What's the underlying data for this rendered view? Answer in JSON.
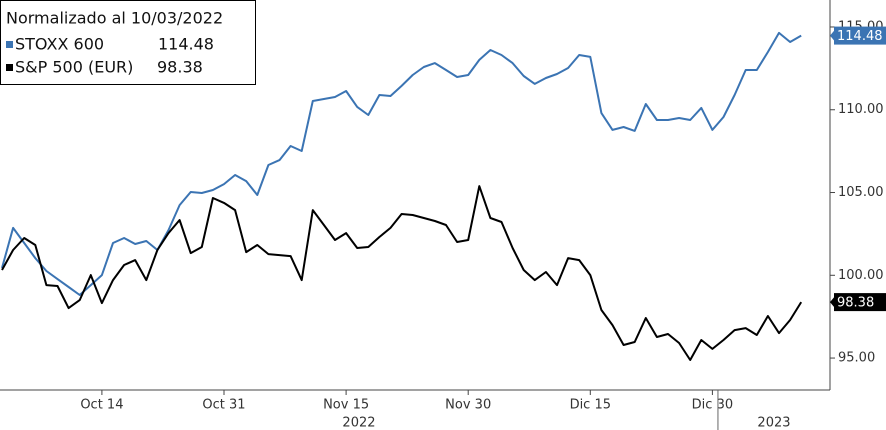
{
  "chart_data": {
    "type": "line",
    "legend_title": "Normalizado al 10/03/2022",
    "categories": [
      null,
      null,
      null,
      null,
      null,
      null,
      null,
      null,
      null,
      "Oct 14",
      null,
      null,
      null,
      null,
      null,
      null,
      null,
      null,
      null,
      null,
      "Oct 31",
      null,
      null,
      null,
      null,
      null,
      null,
      null,
      null,
      null,
      null,
      "Nov 15",
      null,
      null,
      null,
      null,
      null,
      null,
      null,
      null,
      null,
      null,
      "Nov 30",
      null,
      null,
      null,
      null,
      null,
      null,
      null,
      null,
      null,
      null,
      "Dic 15",
      null,
      null,
      null,
      null,
      null,
      null,
      null,
      null,
      null,
      null,
      "Dic 30",
      null,
      null,
      null,
      null,
      null,
      null,
      null,
      null
    ],
    "year_groups": [
      {
        "label": "2022",
        "first": 0,
        "last": 64
      },
      {
        "label": "2023",
        "first": 65,
        "last": 72
      }
    ],
    "series": [
      {
        "name": "STOXX 600",
        "color": "#3b74b3",
        "values": [
          100.44,
          102.86,
          101.95,
          101.04,
          100.26,
          99.77,
          99.29,
          98.81,
          99.41,
          100.01,
          101.95,
          102.25,
          101.89,
          102.07,
          101.53,
          102.73,
          104.24,
          105.03,
          104.97,
          105.15,
          105.51,
          106.06,
          105.69,
          104.85,
          106.66,
          106.96,
          107.81,
          107.51,
          110.53,
          110.65,
          110.77,
          111.13,
          110.17,
          109.68,
          110.89,
          110.83,
          111.44,
          112.1,
          112.58,
          112.82,
          112.4,
          111.98,
          112.1,
          113.01,
          113.61,
          113.31,
          112.82,
          112.04,
          111.56,
          111.92,
          112.16,
          112.52,
          113.31,
          113.19,
          109.8,
          108.78,
          108.96,
          108.72,
          110.35,
          109.38,
          109.38,
          109.5,
          109.38,
          110.11,
          108.78,
          109.56,
          110.89,
          112.4,
          112.4,
          113.49,
          114.64,
          114.09,
          114.48
        ]
      },
      {
        "name": "S&P 500 (EUR)",
        "color": "#000000",
        "values": [
          100.32,
          101.53,
          102.25,
          101.83,
          99.41,
          99.35,
          98.02,
          98.5,
          100.01,
          98.32,
          99.71,
          100.62,
          100.92,
          99.71,
          101.53,
          102.55,
          103.34,
          101.34,
          101.71,
          104.67,
          104.37,
          103.94,
          101.4,
          101.83,
          101.28,
          101.22,
          101.16,
          99.71,
          103.94,
          103.04,
          102.13,
          102.55,
          101.65,
          101.71,
          102.31,
          102.86,
          103.7,
          103.64,
          103.46,
          103.28,
          103.04,
          102.01,
          102.13,
          105.39,
          103.46,
          103.22,
          101.65,
          100.32,
          99.71,
          100.2,
          99.41,
          101.04,
          100.92,
          100.01,
          97.9,
          96.99,
          95.79,
          95.97,
          97.42,
          96.27,
          96.45,
          95.91,
          94.88,
          96.09,
          95.55,
          96.09,
          96.69,
          96.81,
          96.39,
          97.54,
          96.51,
          97.3,
          98.38
        ]
      }
    ],
    "ylim": [
      93.07,
      116.63
    ],
    "yticks": [
      {
        "value": 95,
        "label": "95.00"
      },
      {
        "value": 100,
        "label": "100.00"
      },
      {
        "value": 105,
        "label": "105.00"
      },
      {
        "value": 110,
        "label": "110.00"
      },
      {
        "value": 115,
        "label": "115.00"
      }
    ],
    "grid": false,
    "legend": "top-left"
  }
}
